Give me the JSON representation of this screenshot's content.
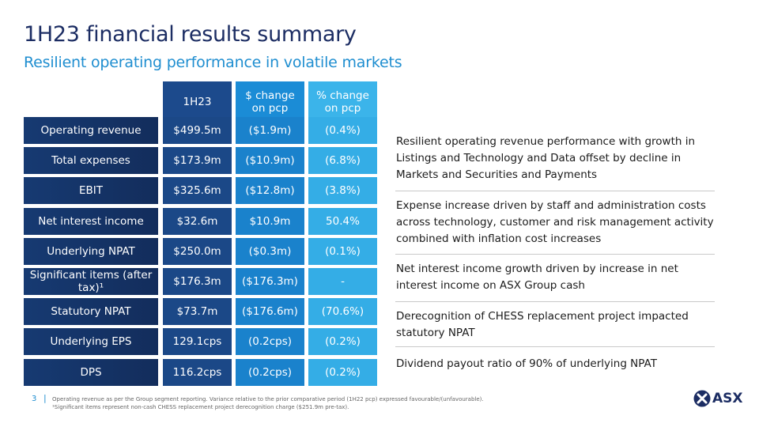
{
  "header": {
    "title": "1H23 financial results summary",
    "subtitle": "Resilient operating performance in volatile markets"
  },
  "table": {
    "columns": [
      "1H23",
      "$ change on pcp",
      "% change on pcp"
    ],
    "rows": [
      {
        "label": "Operating revenue",
        "values": [
          "$499.5m",
          "($1.9m)",
          "(0.4%)"
        ]
      },
      {
        "label": "Total expenses",
        "values": [
          "$173.9m",
          "($10.9m)",
          "(6.8%)"
        ]
      },
      {
        "label": "EBIT",
        "values": [
          "$325.6m",
          "($12.8m)",
          "(3.8%)"
        ]
      },
      {
        "label": "Net interest income",
        "values": [
          "$32.6m",
          "$10.9m",
          "50.4%"
        ]
      },
      {
        "label": "Underlying NPAT",
        "values": [
          "$250.0m",
          "($0.3m)",
          "(0.1%)"
        ]
      },
      {
        "label": "Significant items (after tax)¹",
        "values": [
          "$176.3m",
          "($176.3m)",
          "-"
        ]
      },
      {
        "label": "Statutory NPAT",
        "values": [
          "$73.7m",
          "($176.6m)",
          "(70.6%)"
        ]
      },
      {
        "label": "Underlying EPS",
        "values": [
          "129.1cps",
          "(0.2cps)",
          "(0.2%)"
        ]
      },
      {
        "label": "DPS",
        "values": [
          "116.2cps",
          "(0.2cps)",
          "(0.2%)"
        ]
      }
    ]
  },
  "bullets": [
    "Resilient operating revenue performance with growth in Listings and Technology and Data offset by decline in Markets and Securities and Payments",
    "Expense increase driven by staff and administration costs across technology, customer and risk management activity combined with inflation cost increases",
    "Net interest income growth driven by increase in net interest income on ASX Group cash",
    "Derecognition of CHESS replacement project impacted statutory NPAT",
    "Dividend payout ratio of 90% of underlying NPAT"
  ],
  "footer": {
    "page": "3",
    "notes": [
      "Operating revenue as per the Group segment reporting. Variance relative to the prior comparative period (1H22 pcp) expressed favourable/(unfavourable).",
      "¹Significant items represent non-cash CHESS replacement project derecognition charge ($251.9m pre-tax)."
    ],
    "logo": "ASX"
  }
}
